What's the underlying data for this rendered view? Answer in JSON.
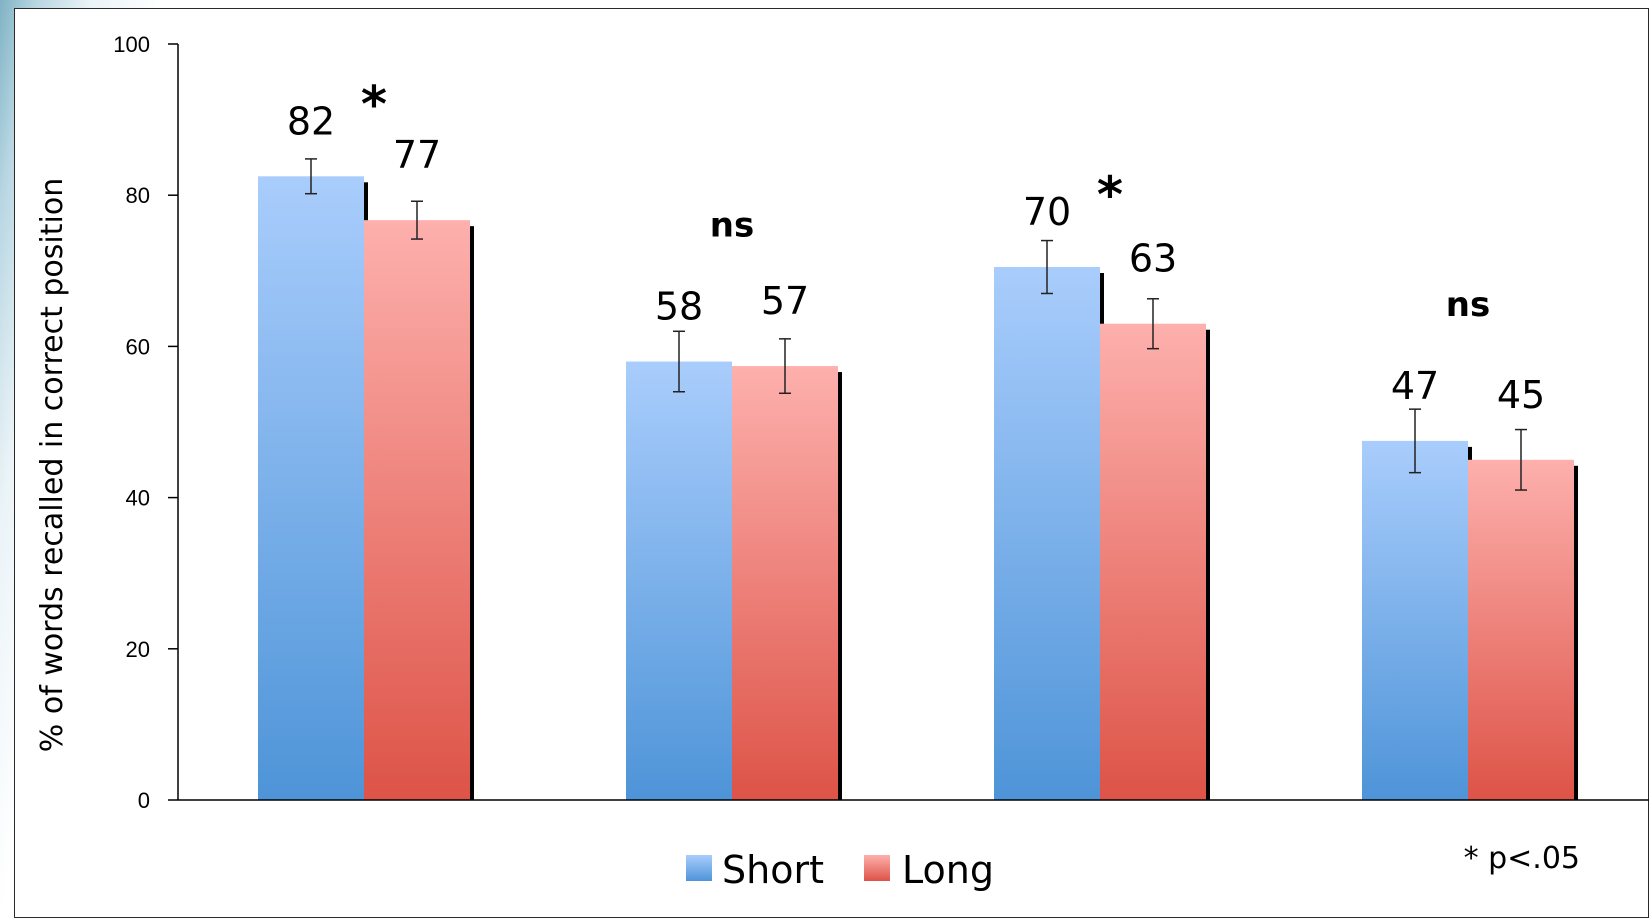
{
  "chart_data": {
    "type": "bar",
    "ylabel": "% of words recalled in correct position",
    "xlabel": "",
    "ylim": [
      0,
      100
    ],
    "yticks": [
      0,
      20,
      40,
      60,
      80,
      100
    ],
    "grid": false,
    "legend_position": "bottom-center",
    "categories": [
      "",
      "",
      "",
      ""
    ],
    "series": [
      {
        "name": "Short",
        "values": [
          82.5,
          58,
          70.5,
          47.5
        ],
        "data_labels": [
          "82",
          "58",
          "70",
          "47"
        ],
        "error": [
          2.3,
          4,
          3.5,
          4.2
        ],
        "color_top": "#a9cdfc",
        "color_bottom": "#4e94d8"
      },
      {
        "name": "Long",
        "values": [
          76.7,
          57.4,
          63,
          45
        ],
        "data_labels": [
          "77",
          "57",
          "63",
          "45"
        ],
        "error": [
          2.5,
          3.6,
          3.3,
          4
        ],
        "color_top": "#fdb0ad",
        "color_bottom": "#dd5347"
      }
    ],
    "significance": [
      "*",
      "ns",
      "*",
      "ns"
    ],
    "annotations": [
      "* p<.05"
    ]
  }
}
